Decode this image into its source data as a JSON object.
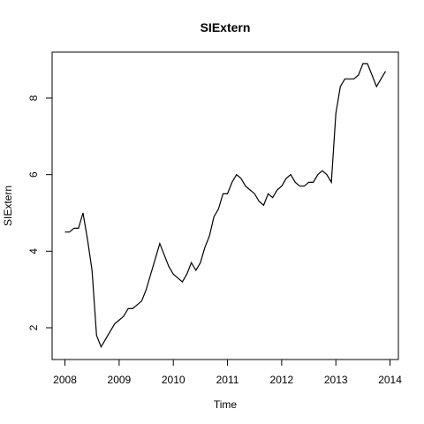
{
  "chart_data": {
    "type": "line",
    "title": "SIExtern",
    "xlabel": "Time",
    "ylabel": "SIExtern",
    "x": [
      2008,
      2008.083,
      2008.167,
      2008.25,
      2008.333,
      2008.417,
      2008.5,
      2008.583,
      2008.667,
      2008.75,
      2008.833,
      2008.917,
      2009,
      2009.083,
      2009.167,
      2009.25,
      2009.333,
      2009.417,
      2009.5,
      2009.583,
      2009.667,
      2009.75,
      2009.833,
      2009.917,
      2010,
      2010.083,
      2010.167,
      2010.25,
      2010.333,
      2010.417,
      2010.5,
      2010.583,
      2010.667,
      2010.75,
      2010.833,
      2010.917,
      2011,
      2011.083,
      2011.167,
      2011.25,
      2011.333,
      2011.417,
      2011.5,
      2011.583,
      2011.667,
      2011.75,
      2011.833,
      2011.917,
      2012,
      2012.083,
      2012.167,
      2012.25,
      2012.333,
      2012.417,
      2012.5,
      2012.583,
      2012.667,
      2012.75,
      2012.833,
      2012.917,
      2013,
      2013.083,
      2013.167,
      2013.25,
      2013.333,
      2013.417,
      2013.5,
      2013.583,
      2013.667,
      2013.75,
      2013.833,
      2013.917
    ],
    "series": [
      {
        "name": "SIExtern",
        "color": "#000000",
        "values": [
          4.5,
          4.5,
          4.6,
          4.6,
          5.0,
          4.3,
          3.5,
          1.8,
          1.5,
          1.7,
          1.9,
          2.1,
          2.2,
          2.3,
          2.5,
          2.5,
          2.6,
          2.7,
          3.0,
          3.4,
          3.8,
          4.2,
          3.9,
          3.6,
          3.4,
          3.3,
          3.2,
          3.4,
          3.7,
          3.5,
          3.7,
          4.1,
          4.4,
          4.9,
          5.1,
          5.5,
          5.5,
          5.8,
          6.0,
          5.9,
          5.7,
          5.6,
          5.5,
          5.3,
          5.2,
          5.5,
          5.4,
          5.6,
          5.7,
          5.9,
          6.0,
          5.8,
          5.7,
          5.7,
          5.8,
          5.8,
          6.0,
          6.1,
          6.0,
          5.8,
          7.6,
          8.3,
          8.5,
          8.5,
          8.5,
          8.6,
          8.9,
          8.9,
          8.6,
          8.3,
          8.5,
          8.7
        ]
      }
    ],
    "xlim": [
      2007.763,
      2014.154
    ],
    "xticks": [
      2008,
      2009,
      2010,
      2011,
      2012,
      2013,
      2014
    ],
    "ylim": [
      1.17,
      9.2
    ],
    "yticks": [
      2,
      4,
      6,
      8
    ]
  }
}
